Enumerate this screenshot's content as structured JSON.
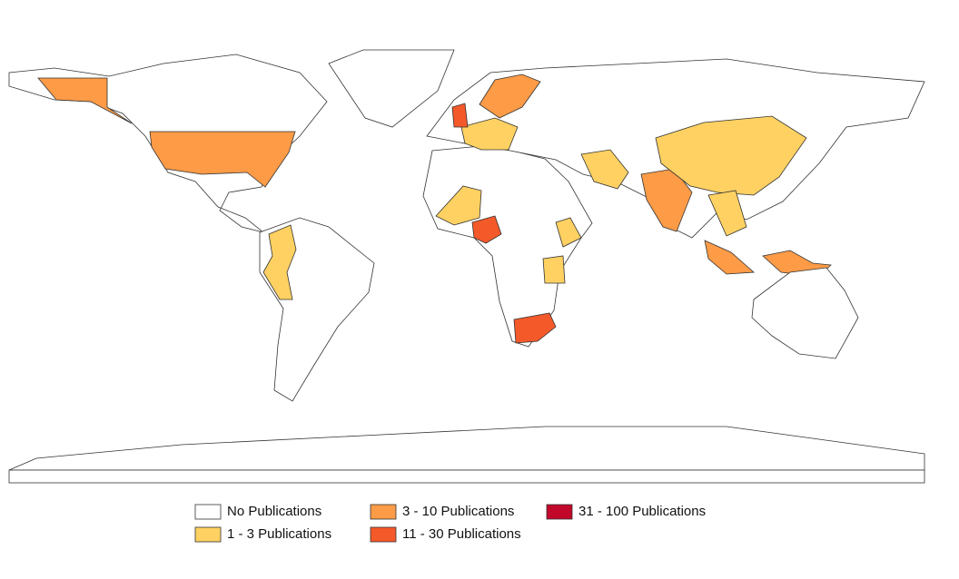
{
  "legend": {
    "items": [
      {
        "label": "No Publications",
        "color": "#ffffff"
      },
      {
        "label": "1 - 3 Publications",
        "color": "#fed162"
      },
      {
        "label": "3 - 10 Publications",
        "color": "#fd9b47"
      },
      {
        "label": "11 - 30 Publications",
        "color": "#f4592a"
      },
      {
        "label": "31 - 100 Publications",
        "color": "#c1082a"
      }
    ]
  }
}
